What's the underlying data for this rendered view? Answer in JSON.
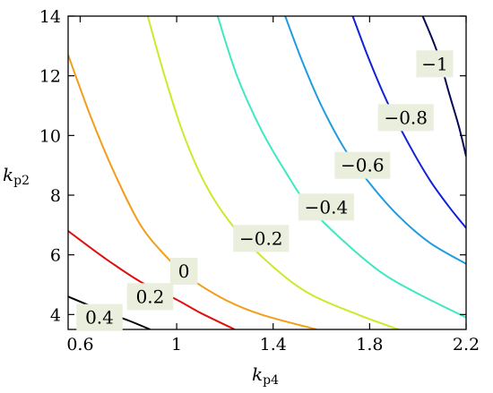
{
  "chart_data": {
    "type": "contour",
    "xlabel": {
      "base": "k",
      "sub": "p4"
    },
    "ylabel": {
      "base": "k",
      "sub": "p2"
    },
    "xlim": [
      0.55,
      2.2
    ],
    "ylim": [
      3.5,
      14
    ],
    "xticks": [
      {
        "v": 0.6,
        "label": "0.6"
      },
      {
        "v": 1.0,
        "label": "1"
      },
      {
        "v": 1.4,
        "label": "1.4"
      },
      {
        "v": 1.8,
        "label": "1.8"
      },
      {
        "v": 2.2,
        "label": "2.2"
      }
    ],
    "yticks": [
      {
        "v": 4,
        "label": "4"
      },
      {
        "v": 6,
        "label": "6"
      },
      {
        "v": 8,
        "label": "8"
      },
      {
        "v": 10,
        "label": "10"
      },
      {
        "v": 12,
        "label": "12"
      },
      {
        "v": 14,
        "label": "14"
      }
    ],
    "grid": false,
    "label_box_color": "#e9eedd",
    "levels": [
      {
        "value": 0.4,
        "label": "0.4",
        "color": "#000000",
        "points": [
          [
            0.55,
            4.6
          ],
          [
            0.7,
            4.1
          ],
          [
            0.8,
            3.8
          ],
          [
            0.89,
            3.5
          ]
        ],
        "label_at": [
          0.68,
          3.9
        ]
      },
      {
        "value": 0.2,
        "label": "0.2",
        "color": "#e01010",
        "points": [
          [
            0.55,
            6.8
          ],
          [
            0.7,
            5.9
          ],
          [
            0.85,
            5.1
          ],
          [
            1.0,
            4.5
          ],
          [
            1.1,
            4.05
          ],
          [
            1.24,
            3.5
          ]
        ],
        "label_at": [
          0.89,
          4.6
        ]
      },
      {
        "value": 0,
        "label": "0",
        "color": "#f29e1a",
        "points": [
          [
            0.55,
            12.7
          ],
          [
            0.65,
            10.5
          ],
          [
            0.75,
            8.6
          ],
          [
            0.85,
            7.0
          ],
          [
            0.95,
            6.0
          ],
          [
            1.05,
            5.25
          ],
          [
            1.2,
            4.5
          ],
          [
            1.35,
            4.0
          ],
          [
            1.58,
            3.5
          ]
        ],
        "label_at": [
          1.03,
          5.45
        ]
      },
      {
        "value": -0.2,
        "label": "−0.2",
        "color": "#cfe82a",
        "points": [
          [
            0.88,
            14
          ],
          [
            0.95,
            12.0
          ],
          [
            1.03,
            10.0
          ],
          [
            1.13,
            8.2
          ],
          [
            1.25,
            6.8
          ],
          [
            1.4,
            5.6
          ],
          [
            1.55,
            4.7
          ],
          [
            1.75,
            4.0
          ],
          [
            1.92,
            3.5
          ]
        ],
        "label_at": [
          1.35,
          6.55
        ]
      },
      {
        "value": -0.4,
        "label": "−0.4",
        "color": "#3ee8c0",
        "points": [
          [
            1.17,
            14
          ],
          [
            1.25,
            12.0
          ],
          [
            1.35,
            10.2
          ],
          [
            1.45,
            8.8
          ],
          [
            1.55,
            7.6
          ],
          [
            1.7,
            6.4
          ],
          [
            1.85,
            5.4
          ],
          [
            2.0,
            4.7
          ],
          [
            2.2,
            3.9
          ]
        ],
        "label_at": [
          1.62,
          7.6
        ]
      },
      {
        "value": -0.6,
        "label": "−0.6",
        "color": "#1e9ce0",
        "points": [
          [
            1.45,
            14
          ],
          [
            1.52,
            12.5
          ],
          [
            1.6,
            11.0
          ],
          [
            1.7,
            9.5
          ],
          [
            1.8,
            8.4
          ],
          [
            1.92,
            7.3
          ],
          [
            2.05,
            6.4
          ],
          [
            2.2,
            5.7
          ]
        ],
        "label_at": [
          1.77,
          9.0
        ]
      },
      {
        "value": -0.8,
        "label": "−0.8",
        "color": "#1222d8",
        "points": [
          [
            1.73,
            14
          ],
          [
            1.8,
            12.5
          ],
          [
            1.88,
            11.0
          ],
          [
            1.97,
            9.6
          ],
          [
            2.05,
            8.5
          ],
          [
            2.13,
            7.6
          ],
          [
            2.2,
            6.9
          ]
        ],
        "label_at": [
          1.95,
          10.6
        ]
      },
      {
        "value": -1,
        "label": "−1",
        "color": "#050a55",
        "points": [
          [
            2.02,
            14
          ],
          [
            2.08,
            12.8
          ],
          [
            2.13,
            11.4
          ],
          [
            2.17,
            10.3
          ],
          [
            2.2,
            9.3
          ]
        ],
        "label_at": [
          2.07,
          12.4
        ]
      }
    ]
  }
}
